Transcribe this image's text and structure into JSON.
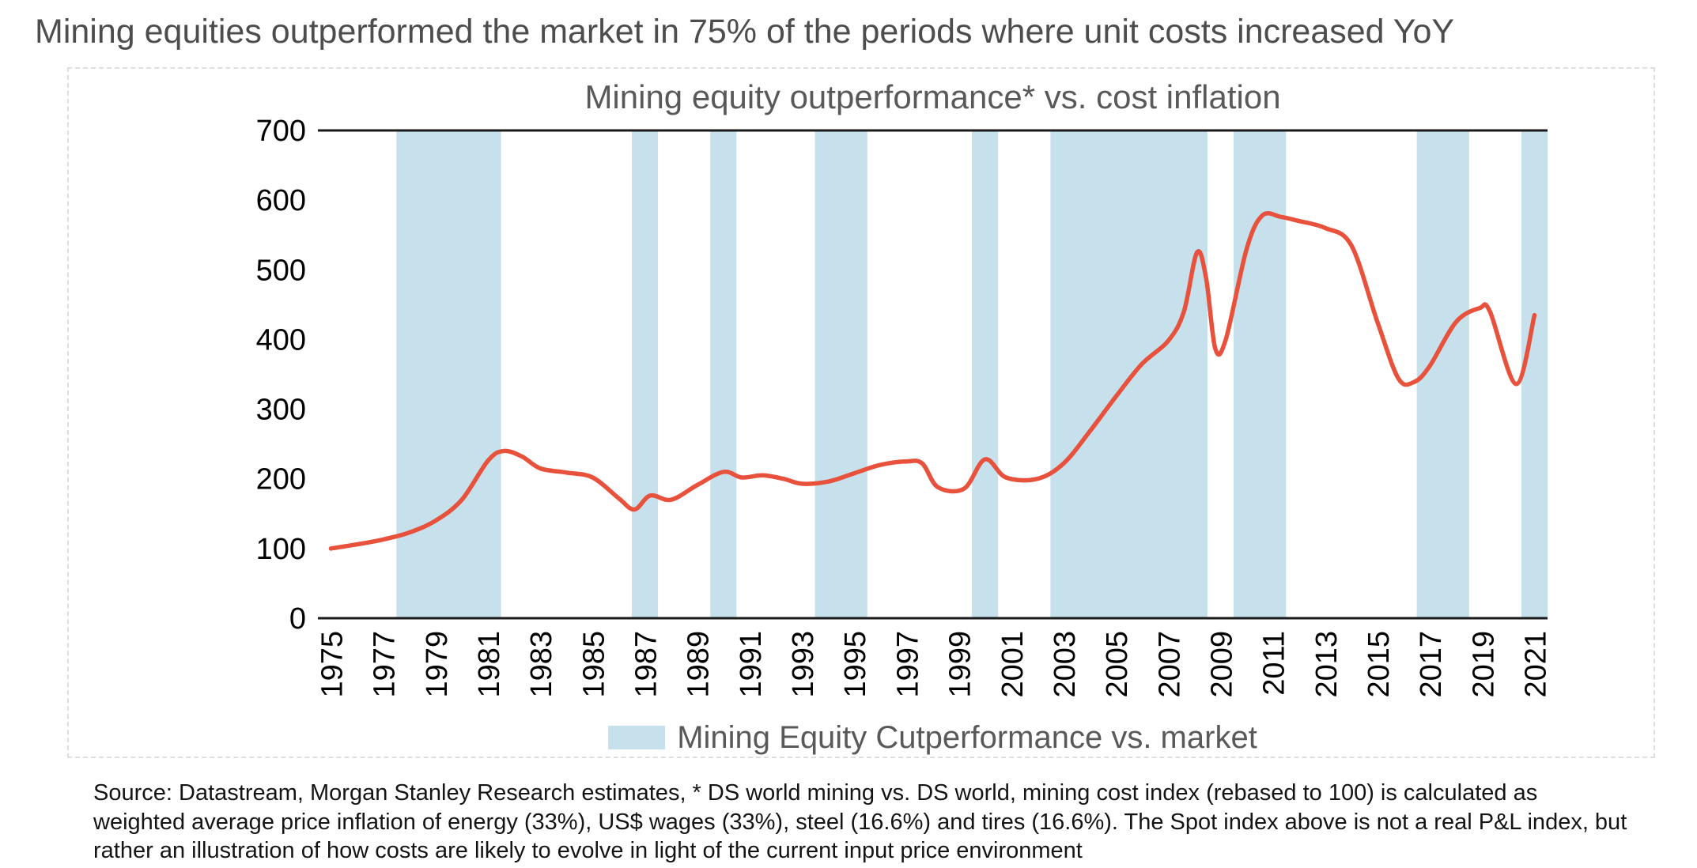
{
  "page": {
    "title": "Mining equities outperformed the market in 75% of the periods where unit costs increased YoY",
    "source_note": "Source: Datastream, Morgan Stanley Research estimates, * DS world mining vs. DS world, mining cost index (rebased to 100) is calculated as weighted average price inflation of energy (33%), US$ wages (33%), steel (16.6%) and tires (16.6%). The Spot index above is not a real P&L index, but rather an illustration of how costs are likely to evolve in light of the current input price environment"
  },
  "chart_data": {
    "type": "line",
    "title": "Mining equity outperformance* vs. cost inflation",
    "ylim": [
      0,
      700
    ],
    "yticks": [
      0,
      100,
      200,
      300,
      400,
      500,
      600,
      700
    ],
    "x_range": [
      1975,
      2021
    ],
    "xtick_years": [
      1975,
      1977,
      1979,
      1981,
      1983,
      1985,
      1987,
      1989,
      1991,
      1993,
      1995,
      1997,
      1999,
      2001,
      2003,
      2005,
      2007,
      2009,
      2011,
      2013,
      2015,
      2017,
      2019,
      2021
    ],
    "borders": [
      "top",
      "bottom"
    ],
    "gridlines": "none",
    "legend": {
      "label": "Mining Equity Cutperformance vs. market",
      "position": "bottom-center",
      "swatch_color": "#c6e0ec"
    },
    "line_series": {
      "color": "#e8513c",
      "points": [
        [
          1975,
          100
        ],
        [
          1976,
          106
        ],
        [
          1977,
          113
        ],
        [
          1978,
          123
        ],
        [
          1979,
          140
        ],
        [
          1980,
          170
        ],
        [
          1981,
          226
        ],
        [
          1981.6,
          240
        ],
        [
          1982.3,
          232
        ],
        [
          1983,
          215
        ],
        [
          1984,
          209
        ],
        [
          1985,
          202
        ],
        [
          1986,
          172
        ],
        [
          1986.6,
          156
        ],
        [
          1987.2,
          176
        ],
        [
          1988,
          170
        ],
        [
          1989,
          191
        ],
        [
          1990,
          210
        ],
        [
          1990.7,
          202
        ],
        [
          1991.5,
          205
        ],
        [
          1992.3,
          200
        ],
        [
          1993,
          193
        ],
        [
          1994,
          196
        ],
        [
          1995,
          208
        ],
        [
          1996,
          220
        ],
        [
          1997,
          225
        ],
        [
          1997.6,
          222
        ],
        [
          1998.2,
          188
        ],
        [
          1999.2,
          186
        ],
        [
          2000,
          228
        ],
        [
          2000.8,
          202
        ],
        [
          2002,
          200
        ],
        [
          2003,
          222
        ],
        [
          2004,
          268
        ],
        [
          2005,
          318
        ],
        [
          2006,
          365
        ],
        [
          2007,
          398
        ],
        [
          2007.6,
          440
        ],
        [
          2008.1,
          525
        ],
        [
          2008.45,
          488
        ],
        [
          2008.8,
          387
        ],
        [
          2009.2,
          400
        ],
        [
          2010,
          530
        ],
        [
          2010.6,
          578
        ],
        [
          2011.3,
          576
        ],
        [
          2012,
          570
        ],
        [
          2013,
          560
        ],
        [
          2014,
          535
        ],
        [
          2015,
          425
        ],
        [
          2015.8,
          344
        ],
        [
          2016.4,
          339
        ],
        [
          2017,
          362
        ],
        [
          2018,
          425
        ],
        [
          2018.9,
          445
        ],
        [
          2019.3,
          440
        ],
        [
          2020.3,
          336
        ],
        [
          2021,
          435
        ]
      ]
    },
    "outperformance_bands": {
      "color": "#c6e0ec",
      "ranges": [
        [
          1978,
          1982
        ],
        [
          1987,
          1988
        ],
        [
          1990,
          1991
        ],
        [
          1994,
          1996
        ],
        [
          2000,
          2001
        ],
        [
          2003,
          2009
        ],
        [
          2010,
          2012
        ],
        [
          2017,
          2019
        ],
        [
          2021,
          2022
        ]
      ]
    }
  }
}
